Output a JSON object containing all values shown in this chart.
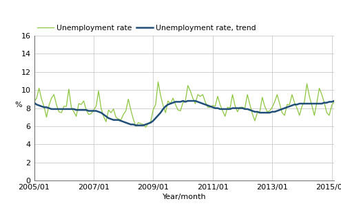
{
  "ylabel": "%",
  "xlabel": "Year/month",
  "legend_entries": [
    "Unemployment rate",
    "Unemployment rate, trend"
  ],
  "line_color_rate": "#8dc63f",
  "line_color_trend": "#1f4e79",
  "ylim": [
    0,
    16
  ],
  "yticks": [
    0,
    2,
    4,
    6,
    8,
    10,
    12,
    14,
    16
  ],
  "xtick_labels": [
    "2005/01",
    "2007/01",
    "2009/01",
    "2011/01",
    "2013/01",
    "2015/01"
  ],
  "xtick_positions": [
    2005.0,
    2007.0,
    2009.0,
    2011.0,
    2013.0,
    2015.0
  ],
  "xlim_start": 2005.0,
  "xlim_end": 2015.083,
  "unemployment_rate": [
    8.7,
    9.1,
    10.2,
    9.0,
    8.2,
    7.0,
    8.3,
    9.1,
    9.5,
    8.4,
    7.6,
    7.5,
    8.2,
    8.2,
    10.1,
    8.1,
    7.6,
    7.1,
    8.5,
    8.4,
    8.8,
    7.8,
    7.3,
    7.4,
    7.8,
    8.2,
    9.9,
    8.0,
    7.1,
    6.5,
    7.8,
    7.5,
    7.9,
    7.0,
    6.8,
    6.7,
    7.3,
    7.7,
    9.0,
    7.8,
    6.8,
    6.0,
    6.4,
    6.3,
    6.2,
    5.9,
    6.3,
    6.5,
    7.8,
    8.4,
    10.9,
    9.4,
    8.3,
    7.5,
    8.8,
    8.5,
    9.1,
    8.4,
    7.8,
    7.7,
    8.6,
    8.8,
    10.5,
    9.9,
    9.1,
    8.5,
    9.5,
    9.3,
    9.5,
    8.7,
    8.1,
    8.1,
    8.3,
    8.2,
    9.3,
    8.4,
    7.7,
    7.1,
    8.1,
    8.0,
    9.5,
    8.3,
    7.6,
    8.1,
    8.1,
    8.0,
    9.5,
    8.4,
    7.4,
    6.6,
    7.5,
    7.6,
    9.2,
    8.2,
    7.6,
    7.7,
    8.1,
    8.7,
    9.5,
    8.5,
    7.5,
    7.2,
    8.4,
    8.4,
    9.5,
    8.6,
    8.0,
    7.2,
    8.2,
    8.7,
    10.7,
    9.3,
    8.3,
    7.2,
    8.6,
    10.2,
    9.5,
    8.6,
    7.5,
    7.2,
    8.3,
    8.7,
    9.8,
    8.7,
    8.1,
    7.0,
    8.5,
    8.6,
    8.8,
    8.2,
    7.9,
    8.8,
    8.9
  ],
  "unemployment_trend": [
    8.6,
    8.4,
    8.3,
    8.2,
    8.1,
    8.1,
    8.0,
    7.9,
    7.9,
    7.9,
    7.9,
    7.9,
    7.9,
    7.9,
    7.9,
    7.9,
    7.9,
    7.8,
    7.8,
    7.8,
    7.8,
    7.8,
    7.7,
    7.7,
    7.7,
    7.7,
    7.6,
    7.5,
    7.3,
    7.1,
    6.9,
    6.8,
    6.7,
    6.7,
    6.7,
    6.6,
    6.5,
    6.4,
    6.3,
    6.2,
    6.2,
    6.1,
    6.1,
    6.1,
    6.1,
    6.2,
    6.3,
    6.4,
    6.6,
    6.9,
    7.2,
    7.5,
    7.9,
    8.2,
    8.4,
    8.5,
    8.6,
    8.7,
    8.7,
    8.7,
    8.8,
    8.7,
    8.8,
    8.8,
    8.8,
    8.8,
    8.7,
    8.6,
    8.5,
    8.4,
    8.3,
    8.2,
    8.1,
    8.0,
    8.0,
    7.9,
    7.9,
    7.9,
    7.9,
    7.9,
    8.0,
    8.0,
    8.0,
    8.0,
    8.0,
    7.9,
    7.9,
    7.8,
    7.7,
    7.6,
    7.6,
    7.5,
    7.5,
    7.5,
    7.5,
    7.5,
    7.6,
    7.6,
    7.7,
    7.8,
    7.9,
    8.0,
    8.1,
    8.2,
    8.3,
    8.4,
    8.4,
    8.5,
    8.5,
    8.5,
    8.5,
    8.5,
    8.5,
    8.5,
    8.5,
    8.5,
    8.5,
    8.6,
    8.6,
    8.7,
    8.7,
    8.8,
    8.8,
    8.9,
    8.9,
    8.9,
    8.9,
    8.9,
    8.9,
    8.9,
    8.9,
    8.9,
    8.9
  ]
}
